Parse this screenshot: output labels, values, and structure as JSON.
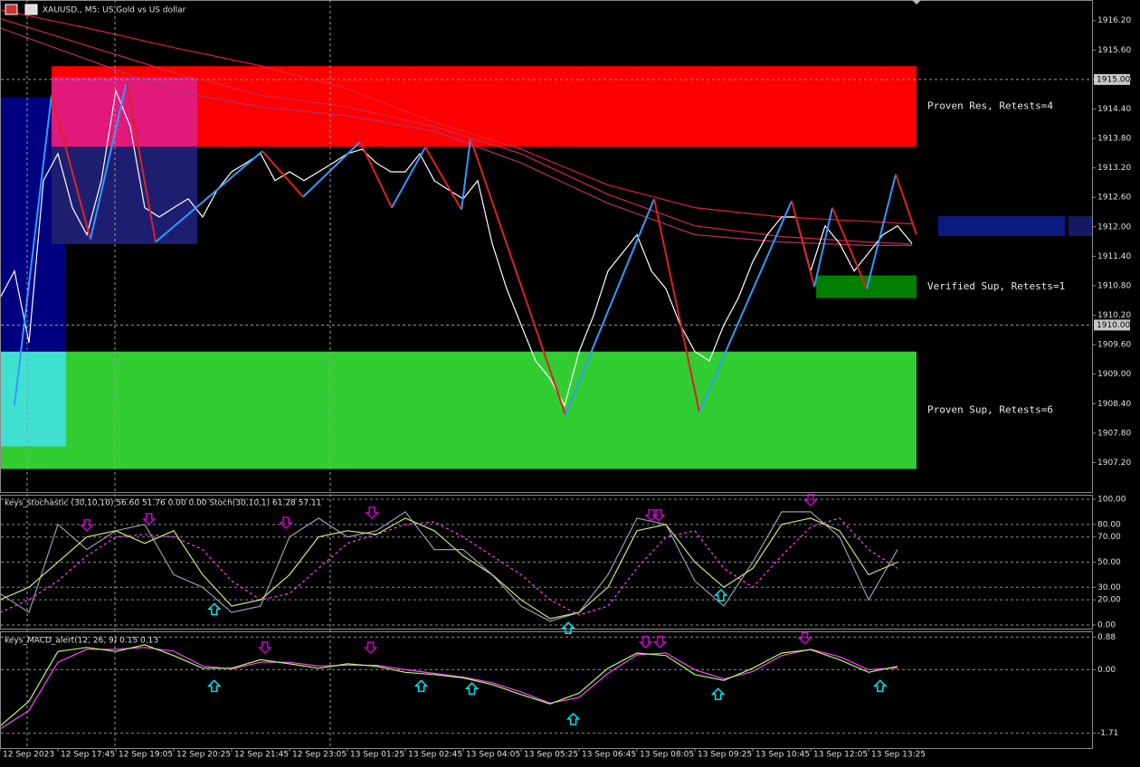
{
  "chart_data": [
    {
      "type": "line",
      "title": "XAUUSD., M5: US Gold vs US dollar",
      "ylim": [
        1906.6,
        1916.6
      ],
      "yticks": [
        {
          "value": 1907.2,
          "label": "1907.20"
        },
        {
          "value": 1907.8,
          "label": "1907.80"
        },
        {
          "value": 1908.4,
          "label": "1908.40"
        },
        {
          "value": 1909.0,
          "label": "1909.00"
        },
        {
          "value": 1909.6,
          "label": "1909.60"
        },
        {
          "value": 1910.2,
          "label": "1910.20"
        },
        {
          "value": 1910.8,
          "label": "1910.80"
        },
        {
          "value": 1911.4,
          "label": "1911.40"
        },
        {
          "value": 1912.0,
          "label": "1912.00"
        },
        {
          "value": 1912.6,
          "label": "1912.60"
        },
        {
          "value": 1913.2,
          "label": "1913.20"
        },
        {
          "value": 1913.8,
          "label": "1913.80"
        },
        {
          "value": 1914.4,
          "label": "1914.40"
        },
        {
          "value": 1915.0,
          "label": "1915.00"
        },
        {
          "value": 1915.6,
          "label": "1915.60"
        },
        {
          "value": 1916.2,
          "label": "1916.20"
        }
      ],
      "grid": false,
      "price_markers": [
        {
          "value": 1915.0,
          "label": "1915.00"
        },
        {
          "value": 1910.0,
          "label": "1910.00"
        }
      ],
      "zones": [
        {
          "label": "Proven Sup, Retests=6",
          "x": [
            0,
            63.31
          ],
          "y": [
            1907.07,
            1909.46
          ],
          "color": "#32cd32"
        },
        {
          "x": [
            0,
            4.56
          ],
          "y": [
            1907.53,
            1909.46
          ],
          "color": "#40e0d0"
        },
        {
          "x": [
            0,
            4.56
          ],
          "y": [
            1909.46,
            1914.64
          ],
          "color": "#000080"
        },
        {
          "label": "Proven Res, Retests=4",
          "x": [
            3.56,
            63.31
          ],
          "y": [
            1913.63,
            1915.27
          ],
          "color": "#ff0000"
        },
        {
          "x": [
            3.56,
            13.63
          ],
          "y": [
            1913.63,
            1915.05
          ],
          "color": "#e0197a"
        },
        {
          "x": [
            3.56,
            13.63
          ],
          "y": [
            1911.65,
            1913.63
          ],
          "color": "#1e1e70"
        },
        {
          "label": "Verified Sup, Retests=1",
          "x": [
            56.38,
            63.31
          ],
          "y": [
            1910.55,
            1911.01
          ],
          "color": "#008000"
        }
      ],
      "series": [
        {
          "name": "MA1",
          "color": "#e0203a",
          "x": [
            0,
            6,
            12,
            18,
            24,
            30,
            36,
            42,
            48,
            54,
            60,
            63
          ],
          "values": [
            1916.42,
            1916.05,
            1915.65,
            1915.28,
            1914.81,
            1914.13,
            1913.58,
            1912.85,
            1912.39,
            1912.2,
            1912.11,
            1912.06
          ]
        },
        {
          "name": "MA2",
          "color": "#d02848",
          "x": [
            0,
            6,
            12,
            18,
            24,
            30,
            36,
            42,
            48,
            54,
            60,
            63
          ],
          "values": [
            1916.24,
            1915.69,
            1915.14,
            1914.68,
            1914.44,
            1914.04,
            1913.49,
            1912.66,
            1912.02,
            1911.8,
            1911.69,
            1911.65
          ]
        },
        {
          "name": "MA3",
          "color": "#b03070",
          "x": [
            0,
            6,
            12,
            18,
            24,
            30,
            36,
            42,
            48,
            54,
            60,
            63
          ],
          "values": [
            1916.05,
            1915.41,
            1914.77,
            1914.44,
            1914.26,
            1913.95,
            1913.3,
            1912.48,
            1911.84,
            1911.69,
            1911.62,
            1911.62
          ]
        },
        {
          "name": "Close",
          "color": "#ffffff",
          "x": [
            0,
            1,
            2,
            3,
            4,
            5,
            6,
            7,
            8,
            9,
            10,
            11,
            12,
            13,
            14,
            15,
            16,
            17,
            18,
            19,
            20,
            21,
            22,
            23,
            24,
            25,
            26,
            27,
            28,
            29,
            30,
            31,
            32,
            33,
            34,
            35,
            36,
            37,
            38,
            39,
            40,
            41,
            42,
            43,
            44,
            45,
            46,
            47,
            48,
            49,
            50,
            51,
            52,
            53,
            54,
            55,
            56,
            57,
            58,
            59,
            60,
            61,
            62,
            63
          ],
          "values": [
            1910.55,
            1911.1,
            1909.64,
            1912.94,
            1913.49,
            1912.39,
            1911.84,
            1912.94,
            1914.77,
            1914.04,
            1912.39,
            1912.2,
            1912.39,
            1912.57,
            1912.2,
            1912.75,
            1913.12,
            1913.3,
            1913.49,
            1912.94,
            1913.12,
            1912.94,
            1913.12,
            1913.3,
            1913.49,
            1913.58,
            1913.3,
            1913.12,
            1913.12,
            1913.49,
            1912.94,
            1912.75,
            1912.57,
            1912.94,
            1911.66,
            1910.74,
            1910.0,
            1909.27,
            1908.91,
            1908.36,
            1909.46,
            1910.19,
            1911.1,
            1911.47,
            1911.84,
            1911.1,
            1910.74,
            1910.0,
            1909.46,
            1909.27,
            1910.0,
            1910.55,
            1911.29,
            1911.84,
            1912.2,
            1912.2,
            1911.1,
            1912.02,
            1911.66,
            1911.1,
            1911.47,
            1911.84,
            1912.02,
            1911.66
          ]
        }
      ],
      "zigzag": {
        "up_color": "#3399ff",
        "down_color": "#dd2222",
        "x": [
          1.0,
          3.56,
          6.25,
          8.75,
          10.75,
          18.13,
          20.94,
          24.88,
          27.06,
          29.38,
          31.88,
          32.5,
          39.06,
          45.19,
          48.31,
          54.69,
          56.25,
          57.5,
          59.88,
          61.88,
          63.31
        ],
        "values": [
          1908.36,
          1914.68,
          1911.75,
          1914.95,
          1911.69,
          1913.54,
          1912.61,
          1913.73,
          1912.39,
          1913.62,
          1912.35,
          1913.8,
          1908.17,
          1912.57,
          1908.23,
          1912.53,
          1910.78,
          1912.39,
          1910.74,
          1913.07,
          1911.84
        ]
      }
    },
    {
      "type": "line",
      "title": "keys_stochastic (30,10,10) 56.60 51.76 0.00 0.00 Stoch(30,10,1) 61.28 57.11",
      "ylim": [
        -2.9,
        102.9
      ],
      "yticks": [
        {
          "value": 0,
          "label": "0.00"
        },
        {
          "value": 20,
          "label": "20.00"
        },
        {
          "value": 30,
          "label": "30.00"
        },
        {
          "value": 50,
          "label": "50.00"
        },
        {
          "value": 70,
          "label": "70.00"
        },
        {
          "value": 80,
          "label": "80.00"
        },
        {
          "value": 100,
          "label": "100.00"
        }
      ],
      "grid": true,
      "series": [
        {
          "name": "Fast",
          "color": "#9a9aaa",
          "x": [
            0,
            2,
            4,
            6,
            8,
            10,
            12,
            14,
            16,
            18,
            20,
            22,
            24,
            26,
            28,
            30,
            32,
            34,
            36,
            38,
            40,
            42,
            44,
            46,
            48,
            50,
            52,
            54,
            56,
            58,
            60,
            62
          ],
          "values": [
            25,
            10,
            80,
            60,
            75,
            80,
            40,
            30,
            10,
            15,
            70,
            85,
            70,
            75,
            90,
            60,
            60,
            40,
            15,
            3,
            10,
            40,
            85,
            80,
            35,
            15,
            50,
            90,
            90,
            70,
            20,
            60
          ]
        },
        {
          "name": "Signal",
          "color": "#ff44ff",
          "style": "dashed",
          "x": [
            0,
            2,
            4,
            6,
            8,
            10,
            12,
            14,
            16,
            18,
            20,
            22,
            24,
            26,
            28,
            30,
            32,
            34,
            36,
            38,
            40,
            42,
            44,
            46,
            48,
            50,
            52,
            54,
            56,
            58,
            60,
            62
          ],
          "values": [
            10,
            20,
            35,
            55,
            70,
            72,
            70,
            60,
            35,
            20,
            25,
            45,
            65,
            72,
            80,
            82,
            70,
            55,
            40,
            20,
            8,
            15,
            45,
            70,
            75,
            45,
            30,
            55,
            78,
            85,
            60,
            45
          ]
        },
        {
          "name": "Main",
          "color": "#c8e878",
          "x": [
            0,
            2,
            4,
            6,
            8,
            10,
            12,
            14,
            16,
            18,
            20,
            22,
            24,
            26,
            28,
            30,
            32,
            34,
            36,
            38,
            40,
            42,
            44,
            46,
            48,
            50,
            52,
            54,
            56,
            58,
            60,
            62
          ],
          "values": [
            20,
            30,
            50,
            70,
            75,
            65,
            75,
            40,
            15,
            20,
            40,
            70,
            75,
            72,
            85,
            75,
            55,
            40,
            20,
            5,
            10,
            30,
            75,
            80,
            50,
            30,
            45,
            80,
            85,
            75,
            40,
            50
          ]
        }
      ],
      "arrow_colors": {
        "up": "#00e5ee",
        "down": "#cc00cc"
      },
      "arrows": [
        {
          "x": 6,
          "value": 75,
          "direction": "down"
        },
        {
          "x": 10.3,
          "value": 80,
          "direction": "down"
        },
        {
          "x": 19.75,
          "value": 77,
          "direction": "down"
        },
        {
          "x": 25.7,
          "value": 85,
          "direction": "down"
        },
        {
          "x": 45,
          "value": 83,
          "direction": "down"
        },
        {
          "x": 45.5,
          "value": 83,
          "direction": "down"
        },
        {
          "x": 56,
          "value": 95,
          "direction": "down"
        },
        {
          "x": 14.8,
          "value": 17,
          "direction": "up"
        },
        {
          "x": 39.25,
          "value": 2,
          "direction": "up"
        },
        {
          "x": 49.8,
          "value": 28,
          "direction": "up"
        }
      ]
    },
    {
      "type": "line",
      "title": "keys_MACD_alert(12, 26, 9) 0.15 0.13",
      "ylim": [
        -2.11,
        1.01
      ],
      "yticks": [
        {
          "value": -1.71,
          "label": "-1.71"
        },
        {
          "value": 0,
          "label": "0.00"
        },
        {
          "value": 0.88,
          "label": "0.88"
        }
      ],
      "grid": true,
      "categories": [
        "12 Sep 2023",
        null,
        null,
        null,
        "12 Sep 17:45",
        null,
        null,
        null,
        "12 Sep 19:05",
        null,
        null,
        null,
        "12 Sep 20:25",
        null,
        null,
        null,
        "12 Sep 21:45",
        null,
        null,
        null,
        "12 Sep 23:05",
        null,
        null,
        null,
        "13 Sep 01:25",
        null,
        null,
        null,
        "13 Sep 02:45",
        null,
        null,
        null,
        "13 Sep 04:05",
        null,
        null,
        null,
        "13 Sep 05:25",
        null,
        null,
        null,
        "13 Sep 06:45",
        null,
        null,
        null,
        "13 Sep 08:05",
        null,
        null,
        null,
        "13 Sep 09:25",
        null,
        null,
        null,
        "13 Sep 10:45",
        null,
        null,
        null,
        "13 Sep 12:05",
        null,
        null,
        null,
        "13 Sep 13:25",
        null,
        null,
        null
      ],
      "series": [
        {
          "name": "Signal",
          "color": "#ff44ff",
          "x": [
            0,
            2,
            4,
            6,
            8,
            10,
            12,
            14,
            16,
            18,
            20,
            22,
            24,
            26,
            28,
            30,
            32,
            34,
            36,
            38,
            40,
            42,
            44,
            46,
            48,
            50,
            52,
            54,
            56,
            58,
            60,
            62
          ],
          "values": [
            -1.6,
            -1.1,
            0.2,
            0.55,
            0.55,
            0.6,
            0.5,
            0.1,
            0.02,
            0.2,
            0.2,
            0.1,
            0.12,
            0.12,
            0.0,
            -0.1,
            -0.2,
            -0.35,
            -0.6,
            -0.9,
            -0.75,
            -0.1,
            0.4,
            0.45,
            0.0,
            -0.25,
            -0.05,
            0.38,
            0.55,
            0.35,
            0.0,
            0.05
          ]
        },
        {
          "name": "MACD",
          "color": "#b0ff60",
          "x": [
            0,
            2,
            4,
            6,
            8,
            10,
            12,
            14,
            16,
            18,
            20,
            22,
            24,
            26,
            28,
            30,
            32,
            34,
            36,
            38,
            40,
            42,
            44,
            46,
            48,
            50,
            52,
            54,
            56,
            58,
            60,
            62
          ],
          "values": [
            -1.52,
            -0.85,
            0.49,
            0.6,
            0.49,
            0.67,
            0.38,
            0.04,
            0.04,
            0.27,
            0.16,
            0.04,
            0.16,
            0.09,
            -0.07,
            -0.13,
            -0.22,
            -0.4,
            -0.67,
            -0.92,
            -0.63,
            0.04,
            0.45,
            0.38,
            -0.13,
            -0.29,
            0.04,
            0.45,
            0.54,
            0.27,
            -0.07,
            0.09
          ]
        }
      ],
      "arrow_colors": {
        "up": "#00e5ee",
        "down": "#cc00cc"
      },
      "arrows": [
        {
          "x": 18.3,
          "value": 0.45,
          "direction": "down"
        },
        {
          "x": 25.6,
          "value": 0.45,
          "direction": "down"
        },
        {
          "x": 44.6,
          "value": 0.6,
          "direction": "down"
        },
        {
          "x": 45.6,
          "value": 0.6,
          "direction": "down"
        },
        {
          "x": 55.6,
          "value": 0.7,
          "direction": "down"
        },
        {
          "x": 14.8,
          "value": -0.29,
          "direction": "up"
        },
        {
          "x": 29.1,
          "value": -0.29,
          "direction": "up"
        },
        {
          "x": 32.6,
          "value": -0.36,
          "direction": "up"
        },
        {
          "x": 39.6,
          "value": -1.18,
          "direction": "up"
        },
        {
          "x": 49.6,
          "value": -0.51,
          "direction": "up"
        },
        {
          "x": 60.8,
          "value": -0.29,
          "direction": "up"
        }
      ]
    }
  ]
}
